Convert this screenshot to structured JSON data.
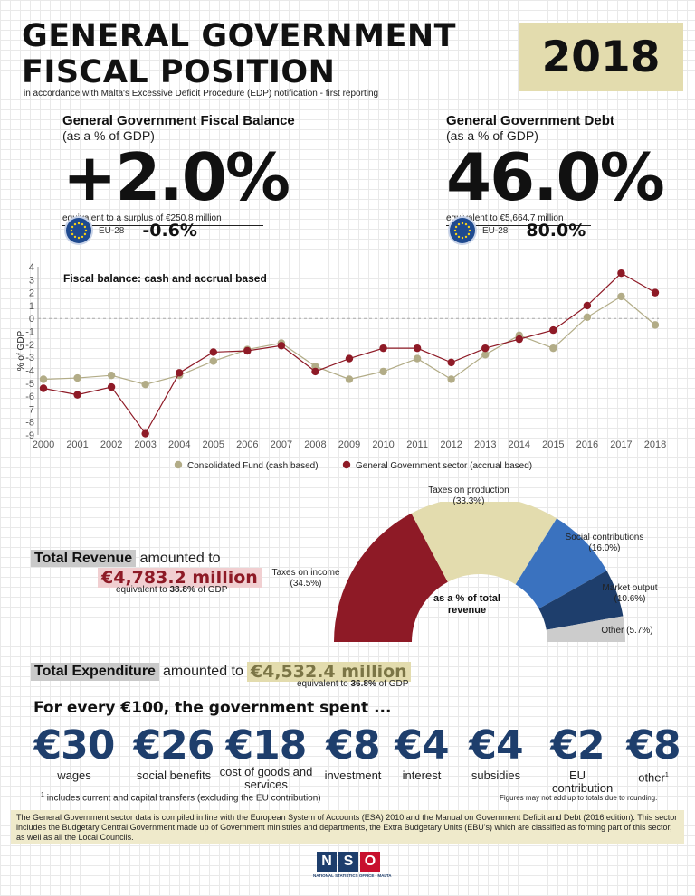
{
  "header": {
    "title_line1": "GENERAL GOVERNMENT",
    "title_line2": "FISCAL POSITION",
    "subtitle": "in accordance with Malta's Excessive Deficit Procedure (EDP) notification - first reporting",
    "year": "2018"
  },
  "fiscal_balance": {
    "heading": "General Government Fiscal Balance",
    "sub": "(as a % of GDP)",
    "value": "+2.0%",
    "note": "equivalent to a surplus of €250.8 million",
    "eu_label": "EU-28",
    "eu_value": "-0.6%"
  },
  "debt": {
    "heading": "General Government Debt",
    "sub": "(as a % of GDP)",
    "value": "46.0%",
    "note": "equivalent to €5,664.7 million",
    "eu_label": "EU-28",
    "eu_value": "80.0%"
  },
  "chart_data": [
    {
      "type": "line",
      "title": "Fiscal balance: cash and accrual based",
      "ylabel": "% of GDP",
      "xlabel": "",
      "ylim": [
        -9,
        4
      ],
      "yticks": [
        "4",
        "3",
        "2",
        "1",
        "0",
        "-1",
        "-2",
        "-3",
        "-4",
        "-5",
        "-6",
        "-7",
        "-8",
        "-9"
      ],
      "x": [
        "2000",
        "2001",
        "2002",
        "2003",
        "2004",
        "2005",
        "2006",
        "2007",
        "2008",
        "2009",
        "2010",
        "2011",
        "2012",
        "2013",
        "2014",
        "2015",
        "2016",
        "2017",
        "2018"
      ],
      "series": [
        {
          "name": "Consolidated Fund (cash based)",
          "color": "#b2ac87",
          "values": [
            -4.7,
            -4.6,
            -4.4,
            -5.1,
            -4.4,
            -3.3,
            -2.4,
            -1.9,
            -3.7,
            -4.7,
            -4.1,
            -3.1,
            -4.7,
            -2.8,
            -1.3,
            -2.3,
            0.1,
            1.7,
            -0.5
          ]
        },
        {
          "name": "General Government sector (accrual based)",
          "color": "#8e1a26",
          "values": [
            -5.4,
            -5.9,
            -5.3,
            -8.9,
            -4.2,
            -2.6,
            -2.5,
            -2.1,
            -4.1,
            -3.1,
            -2.3,
            -2.3,
            -3.4,
            -2.3,
            -1.6,
            -0.9,
            1.0,
            3.5,
            2.0
          ]
        }
      ],
      "legend": "bottom",
      "grid": false
    },
    {
      "type": "pie",
      "variant": "half-donut",
      "center_label": "as a % of total revenue",
      "categories": [
        "Taxes on income",
        "Taxes on production",
        "Social contributions",
        "Market output",
        "Other"
      ],
      "values": [
        34.5,
        33.3,
        16.0,
        10.6,
        5.7
      ],
      "labels": [
        "(34.5%)",
        "(33.3%)",
        "(16.0%)",
        "(10.6%)",
        "Other (5.7%)"
      ],
      "colors": [
        "#8e1a26",
        "#e3dcae",
        "#3a72bf",
        "#1e3e6c",
        "#cccccc"
      ]
    }
  ],
  "revenue": {
    "label_box": "Total Revenue",
    "text": "amounted to",
    "amount": "€4,783.2 million",
    "equiv_pre": "equivalent to ",
    "equiv_pct": "38.8%",
    "equiv_post": " of GDP"
  },
  "expenditure": {
    "label_box": "Total Expenditure",
    "text": "amounted to",
    "amount": "€4,532.4 million",
    "equiv_pre": "equivalent to ",
    "equiv_pct": "36.8%",
    "equiv_post": " of GDP"
  },
  "spending": {
    "heading": "For every €100, the government spent ...",
    "items": [
      {
        "amount": "€30",
        "label": "wages"
      },
      {
        "amount": "€26",
        "label": "social benefits"
      },
      {
        "amount": "€18",
        "label": "cost of goods and services"
      },
      {
        "amount": "€8",
        "label": "investment"
      },
      {
        "amount": "€4",
        "label": "interest"
      },
      {
        "amount": "€4",
        "label": "subsidies"
      },
      {
        "amount": "€2",
        "label": "EU contribution"
      },
      {
        "amount": "€8",
        "label": "other"
      }
    ],
    "other_footnote_mark": "1",
    "footnote_mark": "1",
    "footnote": "includes current and capital transfers (excluding the EU contribution)",
    "rounding_note": "Figures may not add up to totals due to rounding."
  },
  "footer": {
    "text": "The General Government sector data is compiled in line with the European System of Accounts (ESA) 2010 and the Manual on Government Deficit and Debt (2016 edition). This sector includes the Budgetary Central Government made up of Government ministries and departments, the Extra Budgetary Units (EBU's) which are classified as forming part of this sector, as well as all the Local Councils.",
    "logo_letters": [
      "N",
      "S",
      "O"
    ],
    "logo_caption": "NATIONAL STATISTICS OFFICE - MALTA"
  }
}
